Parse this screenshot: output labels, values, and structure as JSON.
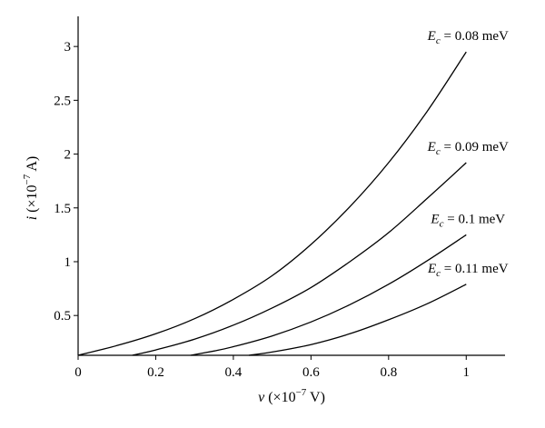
{
  "chart_data": {
    "type": "line",
    "xlabel": {
      "var": "v",
      "pre": " (×10",
      "exp": "−7",
      "post": " V)"
    },
    "ylabel": {
      "var": "i",
      "pre": " (×10",
      "exp": "−7",
      "post": " A)"
    },
    "xlim": [
      0,
      1.1
    ],
    "ylim": [
      0.13,
      3.28
    ],
    "xticks": [
      0,
      0.2,
      0.4,
      0.6,
      0.8,
      1
    ],
    "xtick_labels": [
      "0",
      "0.2",
      "0.4",
      "0.6",
      "0.8",
      "1"
    ],
    "yticks": [
      0.5,
      1,
      1.5,
      2,
      2.5,
      3
    ],
    "ytick_labels": [
      "0.5",
      "1",
      "1.5",
      "2",
      "2.5",
      "3"
    ],
    "grid": false,
    "series": [
      {
        "name": {
          "sym": "E",
          "sub": "c",
          "val": " = 0.08 meV"
        },
        "x": [
          0,
          0.1,
          0.2,
          0.3,
          0.4,
          0.5,
          0.6,
          0.7,
          0.8,
          0.9,
          1.0
        ],
        "y": [
          0.13,
          0.22,
          0.33,
          0.47,
          0.65,
          0.87,
          1.16,
          1.51,
          1.92,
          2.4,
          2.95
        ]
      },
      {
        "name": {
          "sym": "E",
          "sub": "c",
          "val": " = 0.09 meV"
        },
        "x": [
          0.14,
          0.2,
          0.3,
          0.4,
          0.5,
          0.6,
          0.7,
          0.8,
          0.9,
          1.0
        ],
        "y": [
          0.13,
          0.18,
          0.28,
          0.41,
          0.57,
          0.76,
          1.0,
          1.27,
          1.59,
          1.92
        ]
      },
      {
        "name": {
          "sym": "E",
          "sub": "c",
          "val": " = 0.1 meV"
        },
        "x": [
          0.29,
          0.35,
          0.4,
          0.5,
          0.6,
          0.7,
          0.8,
          0.9,
          1.0
        ],
        "y": [
          0.13,
          0.17,
          0.21,
          0.31,
          0.44,
          0.6,
          0.79,
          1.01,
          1.25
        ]
      },
      {
        "name": {
          "sym": "E",
          "sub": "c",
          "val": " = 0.11 meV"
        },
        "x": [
          0.44,
          0.5,
          0.6,
          0.7,
          0.8,
          0.9,
          1.0
        ],
        "y": [
          0.13,
          0.16,
          0.23,
          0.33,
          0.46,
          0.61,
          0.79
        ]
      }
    ]
  }
}
